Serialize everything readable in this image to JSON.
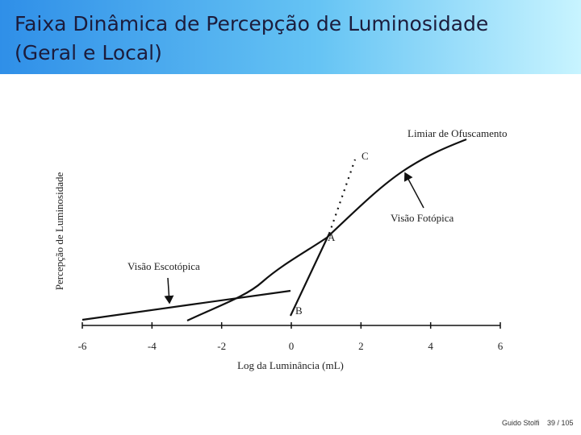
{
  "slide": {
    "title_lines": [
      "Faixa Dinâmica de Percepção de Luminosidade",
      "(Geral e Local)"
    ],
    "author": "Guido Stolfi",
    "page": "39 / 105"
  },
  "chart_data": {
    "type": "line",
    "xlabel": "Log da Luminância (mL)",
    "ylabel": "Percepção de Luminosidade",
    "xlim": [
      -6,
      6
    ],
    "xticks": [
      -6,
      -4,
      -2,
      0,
      2,
      4,
      6
    ],
    "annotations": [
      "Limiar de Ofuscamento",
      "C",
      "Visão Fotópica",
      "A",
      "Visão Escotópica",
      "B"
    ]
  }
}
